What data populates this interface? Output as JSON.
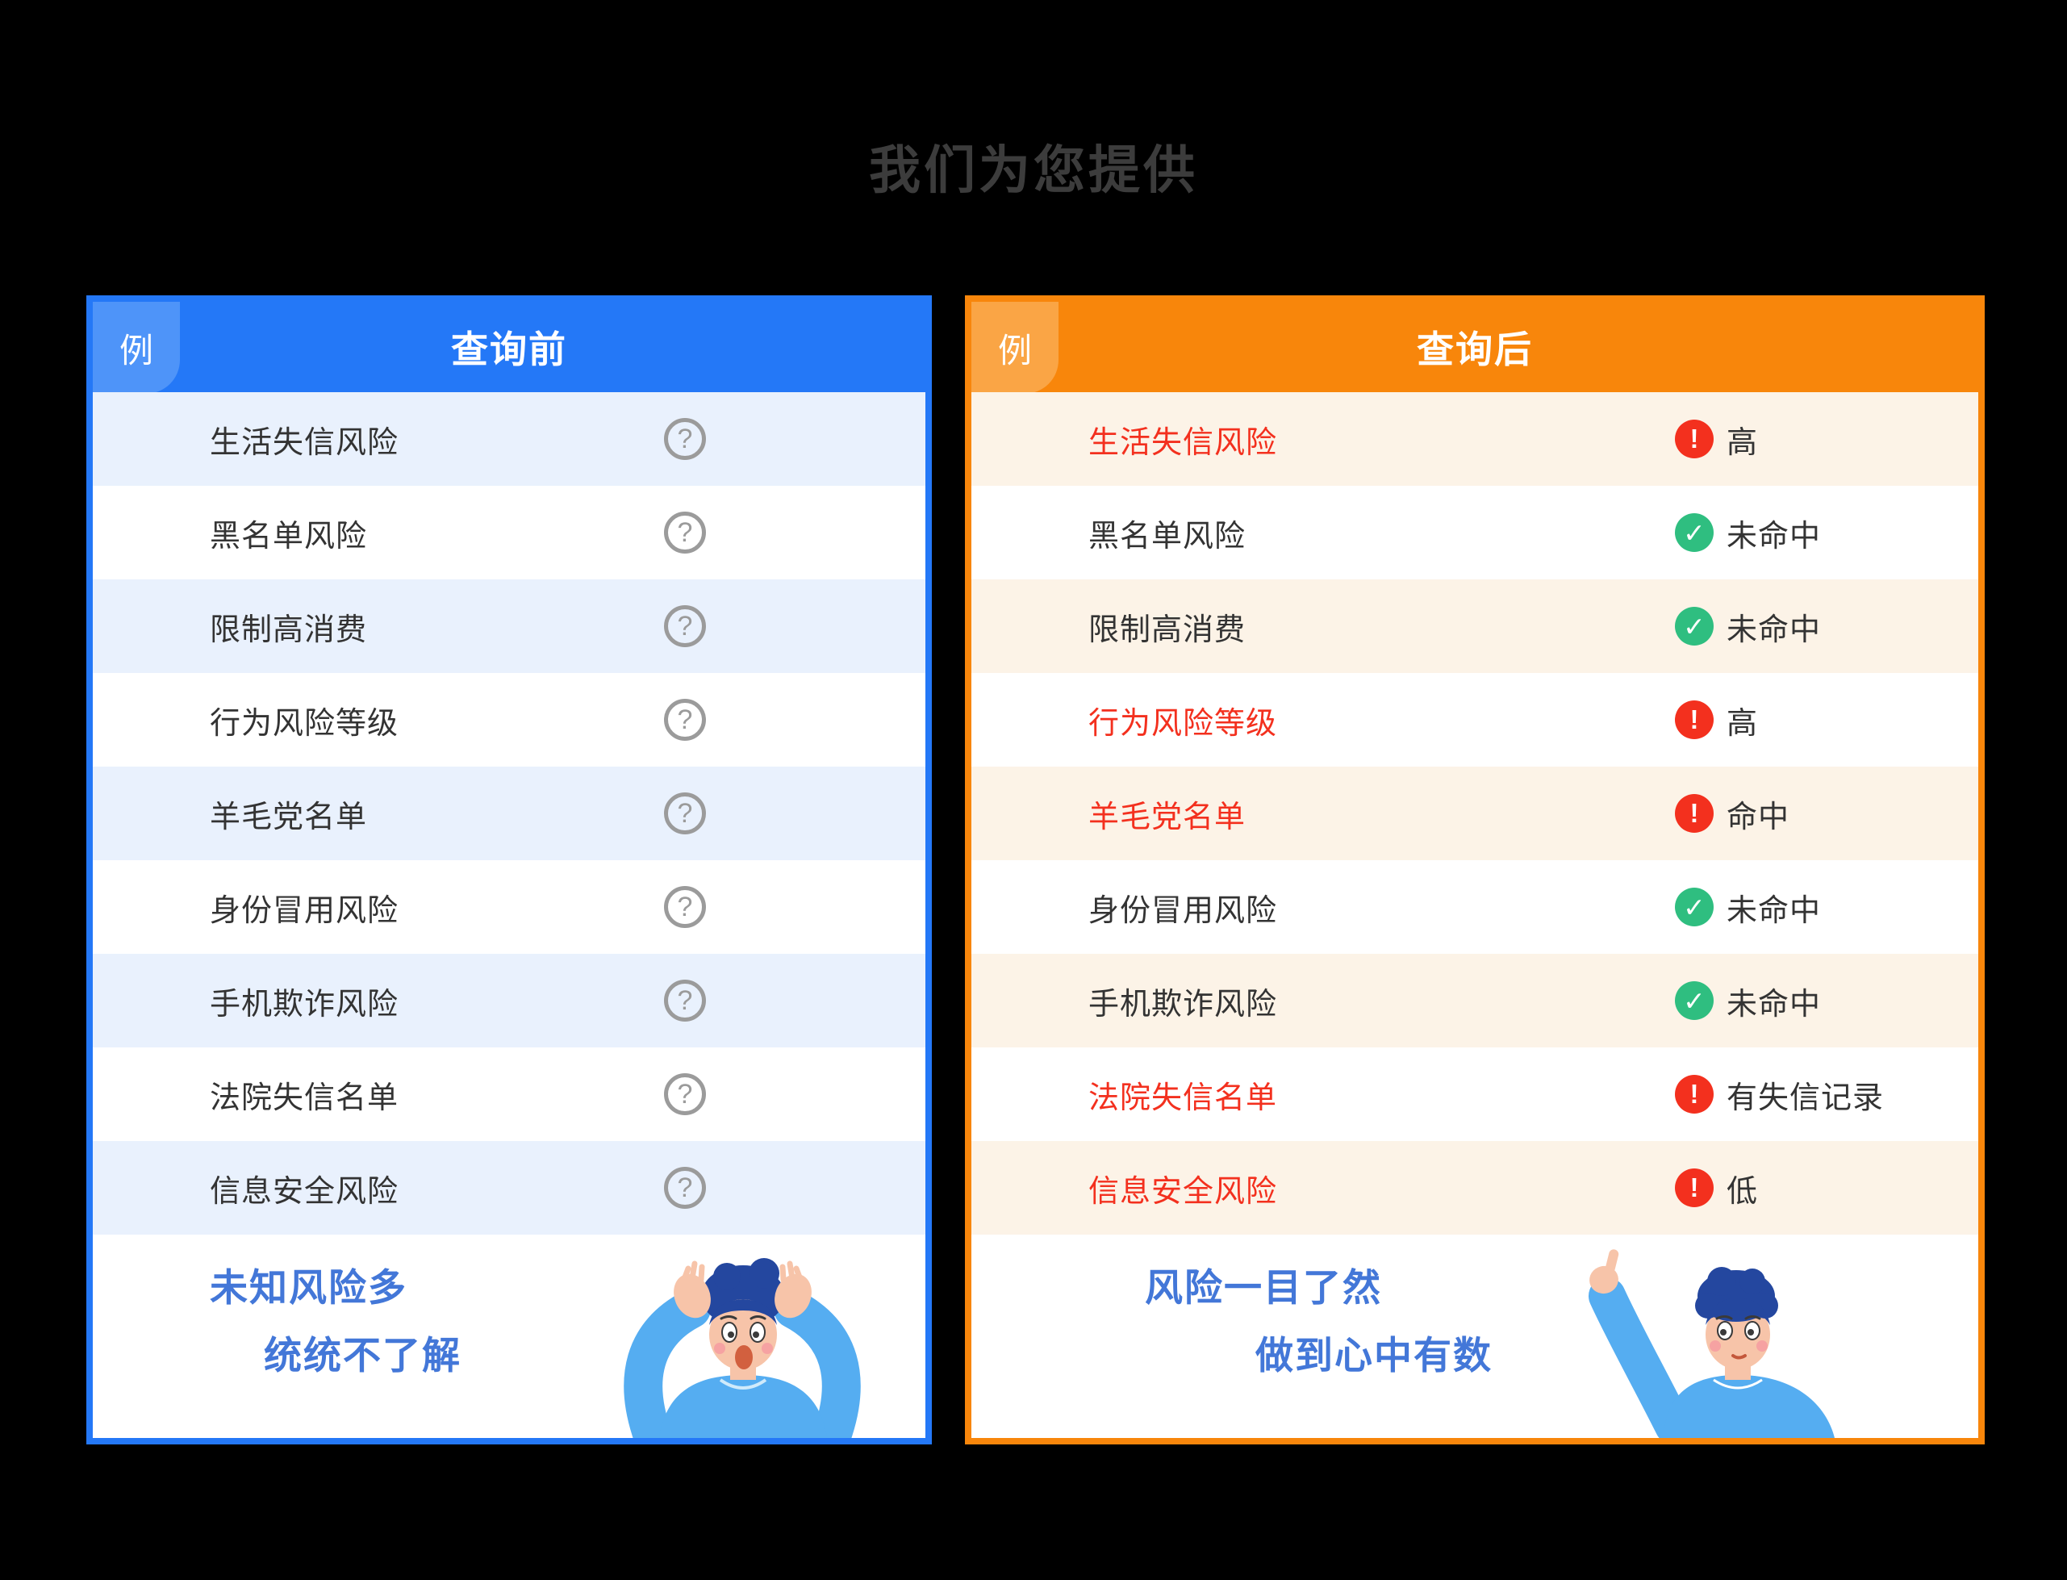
{
  "page": {
    "title": "我们为您提供"
  },
  "icons": {
    "unknown": "?",
    "alert": "!",
    "ok": "✓"
  },
  "colors": {
    "blue": "#2478F7",
    "blue_badge": "#4E94F9",
    "blue_row": "#E9F1FD",
    "orange": "#F8860B",
    "orange_badge": "#FAA545",
    "orange_row": "#FCF3E7",
    "alert_red": "#F3301E",
    "ok_green": "#2FBE80",
    "text_dark": "#333333",
    "caption_blue": "#4377D8"
  },
  "before_panel": {
    "badge": "例",
    "title": "查询前",
    "rows": [
      {
        "label": "生活失信风险"
      },
      {
        "label": "黑名单风险"
      },
      {
        "label": "限制高消费"
      },
      {
        "label": "行为风险等级"
      },
      {
        "label": "羊毛党名单"
      },
      {
        "label": "身份冒用风险"
      },
      {
        "label": "手机欺诈风险"
      },
      {
        "label": "法院失信名单"
      },
      {
        "label": "信息安全风险"
      }
    ],
    "footer_line1": "未知风险多",
    "footer_line2": "统统不了解"
  },
  "after_panel": {
    "badge": "例",
    "title": "查询后",
    "rows": [
      {
        "label": "生活失信风险",
        "status": "高",
        "type": "alert"
      },
      {
        "label": "黑名单风险",
        "status": "未命中",
        "type": "ok"
      },
      {
        "label": "限制高消费",
        "status": "未命中",
        "type": "ok"
      },
      {
        "label": "行为风险等级",
        "status": "高",
        "type": "alert"
      },
      {
        "label": "羊毛党名单",
        "status": "命中",
        "type": "alert"
      },
      {
        "label": "身份冒用风险",
        "status": "未命中",
        "type": "ok"
      },
      {
        "label": "手机欺诈风险",
        "status": "未命中",
        "type": "ok"
      },
      {
        "label": "法院失信名单",
        "status": "有失信记录",
        "type": "alert"
      },
      {
        "label": "信息安全风险",
        "status": "低",
        "type": "alert"
      }
    ],
    "footer_line1": "风险一目了然",
    "footer_line2": "做到心中有数"
  }
}
